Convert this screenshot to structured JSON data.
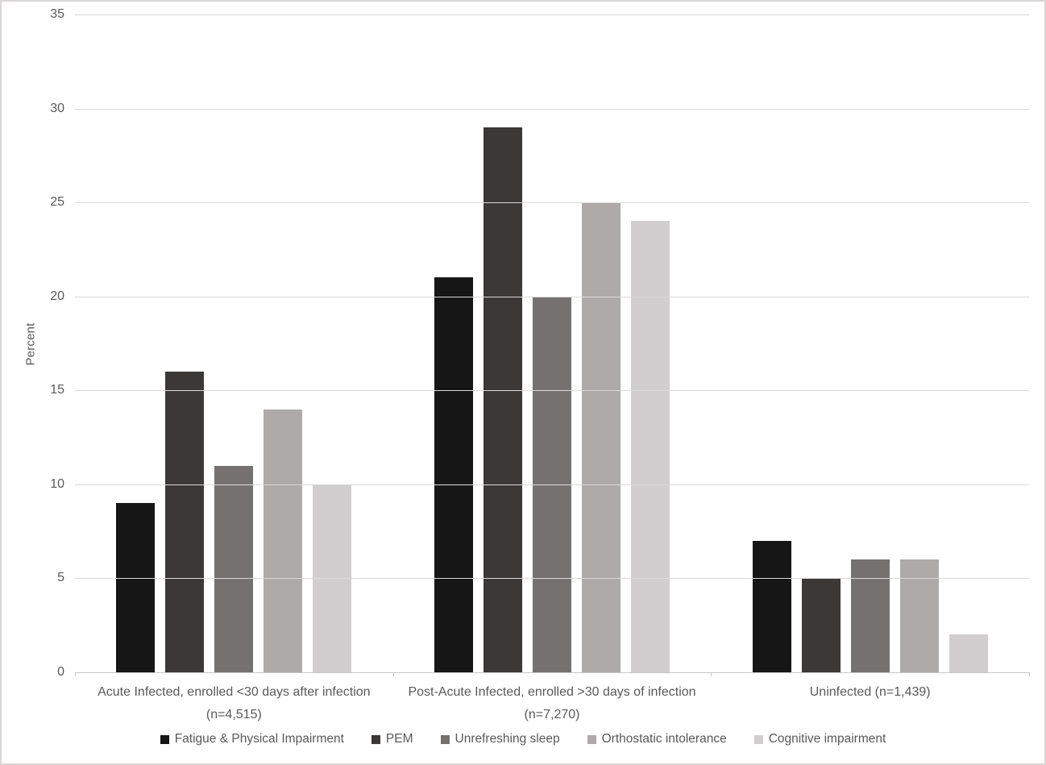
{
  "figure": {
    "background": "#ffffff",
    "border_color": "#d9d6d6"
  },
  "chart_data": {
    "type": "bar",
    "title": "",
    "xlabel": "",
    "ylabel": "Percent",
    "ylim": [
      0,
      35
    ],
    "ytick_step": 5,
    "grid": true,
    "legend_position": "bottom",
    "text_color": "#595959",
    "gridline_color": "#d9d9d9",
    "categories": [
      "Acute Infected, enrolled <30 days after infection\n(n=4,515)",
      "Post-Acute Infected, enrolled >30 days of infection\n(n=7,270)",
      "Uninfected (n=1,439)"
    ],
    "series": [
      {
        "name": "Fatigue & Physical Impairment",
        "color": "#161616",
        "values": [
          9,
          21,
          7
        ]
      },
      {
        "name": "PEM",
        "color": "#3b3838",
        "values": [
          16,
          29,
          5
        ]
      },
      {
        "name": "Unrefreshing sleep",
        "color": "#767171",
        "values": [
          11,
          20,
          6
        ]
      },
      {
        "name": "Orthostatic intolerance",
        "color": "#aeaaaa",
        "values": [
          14,
          25,
          6
        ]
      },
      {
        "name": "Cognitive impairment",
        "color": "#d0cece",
        "values": [
          10,
          24,
          2
        ]
      }
    ]
  }
}
